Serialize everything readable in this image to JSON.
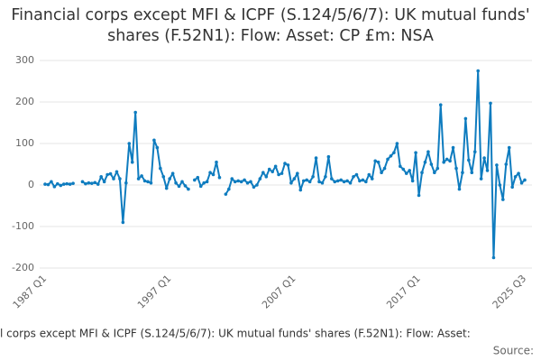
{
  "chart_data": {
    "type": "line",
    "title": "Financial corps except MFI & ICPF (S.124/5/6/7): UK mutual funds' shares (F.52N1): Flow: Asset: CP £m: NSA",
    "footer": "l corps except MFI & ICPF (S.124/5/6/7): UK mutual funds' shares (F.52N1): Flow: Asset:",
    "source": "Source:",
    "categories": [
      "1987 Q1",
      null,
      null,
      null,
      null,
      null,
      null,
      null,
      null,
      null,
      null,
      null,
      null,
      null,
      null,
      null,
      null,
      null,
      null,
      null,
      null,
      null,
      null,
      null,
      null,
      null,
      null,
      null,
      null,
      null,
      null,
      null,
      null,
      null,
      null,
      null,
      null,
      null,
      null,
      null,
      "1997 Q1",
      null,
      null,
      null,
      null,
      null,
      null,
      null,
      null,
      null,
      null,
      null,
      null,
      null,
      null,
      null,
      null,
      null,
      null,
      null,
      null,
      null,
      null,
      null,
      null,
      null,
      null,
      null,
      null,
      null,
      null,
      null,
      null,
      null,
      null,
      null,
      null,
      null,
      null,
      null,
      "2007 Q1",
      null,
      null,
      null,
      null,
      null,
      null,
      null,
      null,
      null,
      null,
      null,
      null,
      null,
      null,
      null,
      null,
      null,
      null,
      null,
      null,
      null,
      null,
      null,
      null,
      null,
      null,
      null,
      null,
      null,
      null,
      null,
      null,
      null,
      null,
      null,
      null,
      null,
      null,
      null,
      "2017 Q1",
      null,
      null,
      null,
      null,
      null,
      null,
      null,
      null,
      null,
      null,
      null,
      null,
      null,
      null,
      null,
      null,
      null,
      null,
      null,
      null,
      null,
      null,
      null,
      null,
      null,
      null,
      null,
      null,
      null,
      null,
      null,
      null,
      null,
      "2025 Q3"
    ],
    "series": [
      {
        "color": "#0f7cbf",
        "values": [
          2,
          1,
          8,
          -4,
          3,
          -1,
          2,
          3,
          2,
          4,
          null,
          null,
          8,
          3,
          5,
          4,
          6,
          2,
          20,
          8,
          25,
          27,
          15,
          32,
          15,
          -90,
          5,
          100,
          55,
          175,
          15,
          22,
          10,
          8,
          5,
          108,
          90,
          40,
          20,
          -8,
          15,
          28,
          5,
          -3,
          8,
          -2,
          -10,
          null,
          12,
          18,
          -3,
          5,
          8,
          30,
          25,
          55,
          18,
          null,
          -22,
          -10,
          15,
          8,
          10,
          8,
          12,
          5,
          8,
          -5,
          0,
          15,
          30,
          20,
          38,
          32,
          45,
          25,
          28,
          52,
          48,
          5,
          15,
          28,
          -12,
          10,
          12,
          8,
          20,
          65,
          8,
          5,
          20,
          68,
          15,
          8,
          10,
          12,
          8,
          10,
          5,
          20,
          25,
          10,
          12,
          8,
          25,
          15,
          58,
          55,
          30,
          40,
          62,
          70,
          78,
          100,
          45,
          38,
          28,
          35,
          10,
          78,
          -25,
          30,
          55,
          80,
          50,
          30,
          40,
          193,
          55,
          62,
          58,
          90,
          40,
          -10,
          30,
          160,
          60,
          30,
          80,
          275,
          15,
          65,
          35,
          197,
          -175,
          48,
          0,
          -35,
          50,
          90,
          -5,
          20,
          28,
          5,
          12
        ]
      }
    ],
    "ylim": [
      -200,
      300
    ],
    "yticks": [
      -200,
      -100,
      0,
      100,
      200,
      300
    ],
    "grid": true
  }
}
